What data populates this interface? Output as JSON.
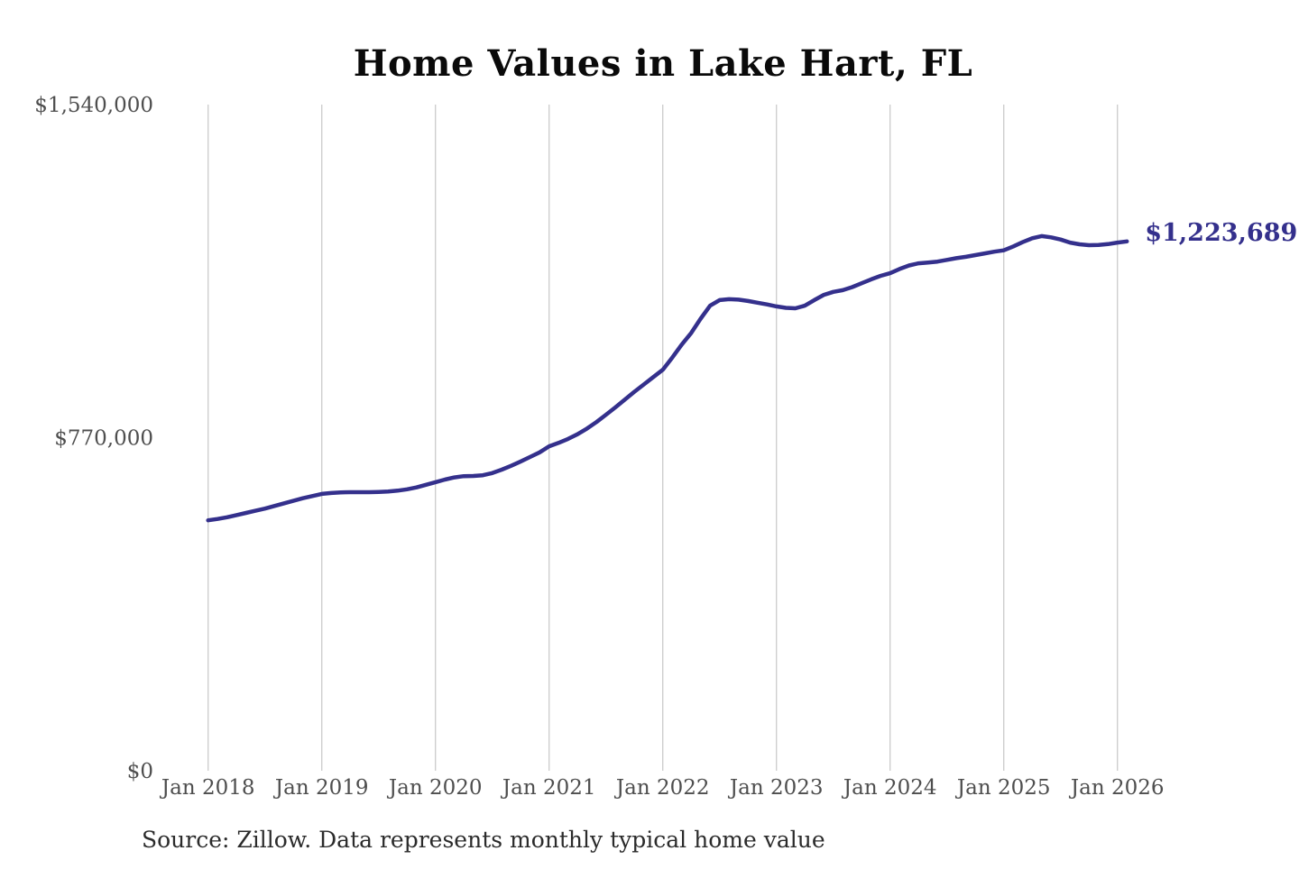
{
  "title": "Home Values in Lake Hart, FL",
  "source_note": "Source: Zillow. Data represents monthly typical home value",
  "colors": {
    "line": "#34308c",
    "grid": "#cbcbcb",
    "tick_text": "#4e4e4e",
    "title_text": "#0a0a0a",
    "source_text": "#2b2b2b",
    "background": "#ffffff"
  },
  "chart_data": {
    "type": "line",
    "title": "Home Values in Lake Hart, FL",
    "xlabel": "",
    "ylabel": "",
    "grid": "vertical-only",
    "legend": "none",
    "ylim": [
      0,
      1540000
    ],
    "x_tick_labels": [
      "Jan 2018",
      "Jan 2019",
      "Jan 2020",
      "Jan 2021",
      "Jan 2022",
      "Jan 2023",
      "Jan 2024",
      "Jan 2025",
      "Jan 2026"
    ],
    "y_ticks": [
      {
        "label": "$0",
        "value": 0
      },
      {
        "label": "$770,000",
        "value": 770000
      },
      {
        "label": "$1,540,000",
        "value": 1540000
      }
    ],
    "series": [
      {
        "name": "Monthly typical home value",
        "start": "2018-01",
        "end": "2026-02",
        "frequency": "monthly",
        "values": [
          579000,
          582000,
          586000,
          591000,
          596000,
          601000,
          606000,
          612000,
          618000,
          624000,
          630000,
          635000,
          640000,
          642000,
          643500,
          644000,
          644000,
          644000,
          644500,
          645500,
          647500,
          650500,
          655000,
          661000,
          667000,
          673000,
          678000,
          681000,
          681500,
          683000,
          688000,
          696000,
          705000,
          715000,
          725500,
          736000,
          750000,
          758000,
          767000,
          778000,
          791000,
          806000,
          823000,
          840000,
          858000,
          876000,
          893000,
          910000,
          927000,
          955000,
          985000,
          1012000,
          1045000,
          1075000,
          1088000,
          1090000,
          1089000,
          1086000,
          1082000,
          1078000,
          1073500,
          1070000,
          1069000,
          1075000,
          1088000,
          1100000,
          1107000,
          1111000,
          1118000,
          1127000,
          1136000,
          1144000,
          1150000,
          1160000,
          1168000,
          1173000,
          1175000,
          1177000,
          1181000,
          1185000,
          1188000,
          1192000,
          1196000,
          1200000,
          1203000,
          1212000,
          1222000,
          1231000,
          1236000,
          1233000,
          1228000,
          1221000,
          1217000,
          1215000,
          1215500,
          1217500,
          1221000,
          1223689
        ]
      }
    ],
    "latest_value": 1223689,
    "latest_value_label": "$1,223,689"
  }
}
